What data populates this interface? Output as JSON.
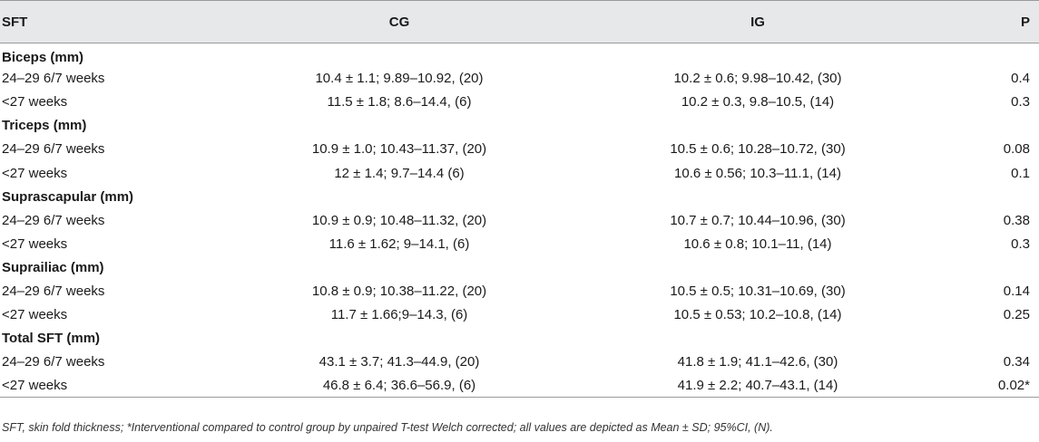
{
  "table": {
    "headers": [
      "SFT",
      "CG",
      "IG",
      "P"
    ],
    "sections": [
      {
        "title": "Biceps (mm)",
        "rows": [
          {
            "label": "24–29 6/7 weeks",
            "cg": "10.4 ± 1.1; 9.89–10.92, (20)",
            "ig": "10.2 ± 0.6; 9.98–10.42, (30)",
            "p": "0.4"
          },
          {
            "label": "<27 weeks",
            "cg": "11.5 ± 1.8; 8.6–14.4, (6)",
            "ig": "10.2 ± 0.3, 9.8–10.5, (14)",
            "p": "0.3"
          }
        ]
      },
      {
        "title": "Triceps (mm)",
        "rows": [
          {
            "label": "24–29 6/7 weeks",
            "cg": "10.9 ± 1.0; 10.43–11.37, (20)",
            "ig": "10.5 ± 0.6; 10.28–10.72, (30)",
            "p": "0.08"
          },
          {
            "label": "<27 weeks",
            "cg": "12 ± 1.4; 9.7–14.4 (6)",
            "ig": "10.6 ± 0.56; 10.3–11.1, (14)",
            "p": "0.1"
          }
        ]
      },
      {
        "title": "Suprascapular (mm)",
        "rows": [
          {
            "label": "24–29 6/7 weeks",
            "cg": "10.9 ± 0.9; 10.48–11.32, (20)",
            "ig": "10.7 ± 0.7; 10.44–10.96, (30)",
            "p": "0.38"
          },
          {
            "label": "<27 weeks",
            "cg": "11.6 ± 1.62; 9–14.1, (6)",
            "ig": "10.6 ± 0.8; 10.1–11, (14)",
            "p": "0.3"
          }
        ]
      },
      {
        "title": "Suprailiac (mm)",
        "rows": [
          {
            "label": "24–29 6/7 weeks",
            "cg": "10.8 ± 0.9; 10.38–11.22, (20)",
            "ig": "10.5 ± 0.5; 10.31–10.69, (30)",
            "p": "0.14"
          },
          {
            "label": "<27 weeks",
            "cg": "11.7 ± 1.66;9–14.3, (6)",
            "ig": "10.5 ± 0.53; 10.2–10.8, (14)",
            "p": "0.25"
          }
        ]
      },
      {
        "title": "Total SFT (mm)",
        "rows": [
          {
            "label": "24–29 6/7 weeks",
            "cg": "43.1 ± 3.7; 41.3–44.9, (20)",
            "ig": "41.8 ± 1.9; 41.1–42.6, (30)",
            "p": "0.34"
          },
          {
            "label": "<27 weeks",
            "cg": "46.8 ± 6.4; 36.6–56.9, (6)",
            "ig": "41.9 ± 2.2; 40.7–43.1, (14)",
            "p": "0.02*"
          }
        ]
      }
    ]
  },
  "footnote": "SFT, skin fold thickness; *Interventional compared to control group by unpaired T-test Welch corrected; all values are depicted as Mean ± SD; 95%CI, (N)."
}
